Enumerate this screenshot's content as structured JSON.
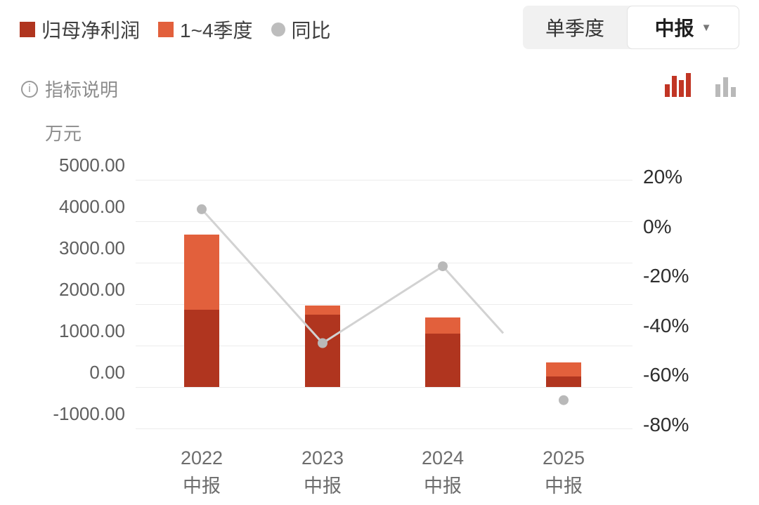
{
  "header": {
    "legend": [
      {
        "label": "归母净利润",
        "marker": "square",
        "color": "#b0351f"
      },
      {
        "label": "1~4季度",
        "marker": "square",
        "color": "#e2603c"
      },
      {
        "label": "同比",
        "marker": "dot",
        "color": "#bdbdbd"
      }
    ],
    "controls": {
      "single_quarter_label": "单季度",
      "report_select_label": "中报",
      "dropdown_icon": "▼"
    }
  },
  "toolbar": {
    "info_label": "指标说明",
    "chart_style_icons": [
      "stacked-bar-icon-active",
      "bar-icon-inactive"
    ],
    "active_icon_color": "#c13524",
    "inactive_icon_color": "#b9b9b9"
  },
  "chart_data": {
    "type": "bar+line",
    "unit_label": "万元",
    "categories": [
      {
        "year": "2022",
        "period": "中报"
      },
      {
        "year": "2023",
        "period": "中报"
      },
      {
        "year": "2024",
        "period": "中报"
      },
      {
        "year": "2025",
        "period": "中报"
      }
    ],
    "series": [
      {
        "name": "归母净利润",
        "type": "bar",
        "axis": "left",
        "color": "#b0351f",
        "values": [
          1860,
          1750,
          1290,
          250
        ]
      },
      {
        "name": "1~4季度",
        "type": "bar",
        "axis": "left",
        "color": "#e2603c",
        "values": [
          3680,
          1970,
          1680,
          590
        ],
        "values_are_stacked_totals": true
      },
      {
        "name": "同比",
        "type": "line",
        "axis": "right",
        "unit": "%",
        "color": "#d2d2d2",
        "dot_color": "#b9b9b9",
        "values": [
          7,
          -47,
          -16,
          -70
        ],
        "partial_last_segment": 0.5,
        "last_point_detached": true
      }
    ],
    "left_axis": {
      "unit": "万元",
      "min": -1000,
      "max": 5000,
      "ticks": [
        "5000.00",
        "4000.00",
        "3000.00",
        "2000.00",
        "1000.00",
        "0.00",
        "-1000.00"
      ]
    },
    "right_axis": {
      "min": -80,
      "max": 20,
      "ticks": [
        "20%",
        "0%",
        "-20%",
        "-40%",
        "-60%",
        "-80%"
      ]
    },
    "grid": true,
    "legend_position": "top-left"
  }
}
